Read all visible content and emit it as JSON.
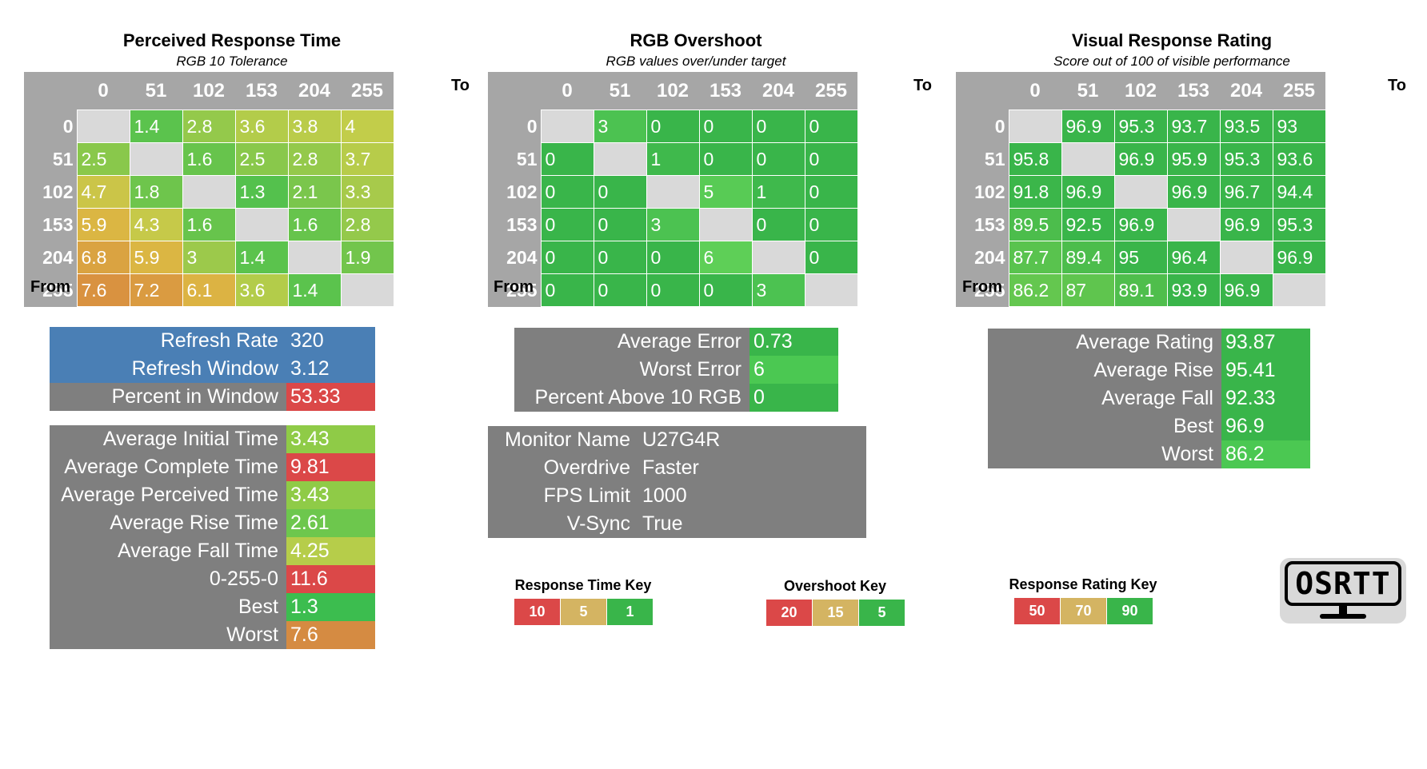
{
  "chart_data": [
    {
      "type": "heatmap",
      "title": "Perceived Response Time",
      "subtitle": "RGB 10 Tolerance",
      "xlabel": "To",
      "ylabel": "From",
      "x": [
        "0",
        "51",
        "102",
        "153",
        "204",
        "255"
      ],
      "y": [
        "0",
        "51",
        "102",
        "153",
        "204",
        "255"
      ],
      "scale": "time",
      "values": [
        [
          null,
          1.4,
          2.8,
          3.6,
          3.8,
          4
        ],
        [
          2.5,
          null,
          1.6,
          2.5,
          2.8,
          3.7
        ],
        [
          4.7,
          1.8,
          null,
          1.3,
          2.1,
          3.3
        ],
        [
          5.9,
          4.3,
          1.6,
          null,
          1.6,
          2.8
        ],
        [
          6.8,
          5.9,
          3,
          1.4,
          null,
          1.9
        ],
        [
          7.6,
          7.2,
          6.1,
          3.6,
          1.4,
          null
        ]
      ]
    },
    {
      "type": "heatmap",
      "title": "RGB Overshoot",
      "subtitle": "RGB values over/under target",
      "xlabel": "To",
      "ylabel": "From",
      "x": [
        "0",
        "51",
        "102",
        "153",
        "204",
        "255"
      ],
      "y": [
        "0",
        "51",
        "102",
        "153",
        "204",
        "255"
      ],
      "scale": "overshoot",
      "values": [
        [
          null,
          3,
          0,
          0,
          0,
          0
        ],
        [
          0,
          null,
          1,
          0,
          0,
          0
        ],
        [
          0,
          0,
          null,
          5,
          1,
          0
        ],
        [
          0,
          0,
          3,
          null,
          0,
          0
        ],
        [
          0,
          0,
          0,
          6,
          null,
          0
        ],
        [
          0,
          0,
          0,
          0,
          3,
          null
        ]
      ]
    },
    {
      "type": "heatmap",
      "title": "Visual Response Rating",
      "subtitle": "Score out of 100 of visible performance",
      "xlabel": "To",
      "ylabel": "From",
      "x": [
        "0",
        "51",
        "102",
        "153",
        "204",
        "255"
      ],
      "y": [
        "0",
        "51",
        "102",
        "153",
        "204",
        "255"
      ],
      "scale": "rating",
      "values": [
        [
          null,
          96.9,
          95.3,
          93.7,
          93.5,
          93
        ],
        [
          95.8,
          null,
          96.9,
          95.9,
          95.3,
          93.6
        ],
        [
          91.8,
          96.9,
          null,
          96.9,
          96.7,
          94.4
        ],
        [
          89.5,
          92.5,
          96.9,
          null,
          96.9,
          95.3
        ],
        [
          87.7,
          89.4,
          95,
          96.4,
          null,
          96.9
        ],
        [
          86.2,
          87,
          89.1,
          93.9,
          96.9,
          null
        ]
      ]
    }
  ],
  "refresh_stats": [
    {
      "label": "Refresh Rate",
      "value": "320",
      "color": "#4a7fb5",
      "value_color": "#4a7fb5"
    },
    {
      "label": "Refresh Window",
      "value": "3.12",
      "color": "#4a7fb5",
      "value_color": "#4a7fb5"
    },
    {
      "label": "Percent in Window",
      "value": "53.33",
      "color": "#7f7f7f",
      "value_color": "#db4848"
    }
  ],
  "time_stats": [
    {
      "label": "Average Initial Time",
      "value": "3.43",
      "value_color": "#8fcb47"
    },
    {
      "label": "Average Complete Time",
      "value": "9.81",
      "value_color": "#db4848"
    },
    {
      "label": "Average Perceived Time",
      "value": "3.43",
      "value_color": "#8fcb47"
    },
    {
      "label": "Average Rise Time",
      "value": "2.61",
      "value_color": "#6dc74d"
    },
    {
      "label": "Average Fall Time",
      "value": "4.25",
      "value_color": "#b6cd4a"
    },
    {
      "label": "0-255-0",
      "value": "11.6",
      "value_color": "#db4848"
    },
    {
      "label": "Best",
      "value": "1.3",
      "value_color": "#3cbd4f"
    },
    {
      "label": "Worst",
      "value": "7.6",
      "value_color": "#d58b42"
    }
  ],
  "overshoot_stats": [
    {
      "label": "Average Error",
      "value": "0.73",
      "value_color": "#39b54a"
    },
    {
      "label": "Worst Error",
      "value": "6",
      "value_color": "#4bc852"
    },
    {
      "label": "Percent Above 10 RGB",
      "value": "0",
      "value_color": "#39b54a"
    }
  ],
  "monitor_info": [
    {
      "label": "Monitor Name",
      "value": "U27G4R"
    },
    {
      "label": "Overdrive",
      "value": "Faster"
    },
    {
      "label": "FPS Limit",
      "value": "1000"
    },
    {
      "label": "V-Sync",
      "value": "True"
    }
  ],
  "rating_stats": [
    {
      "label": "Average Rating",
      "value": "93.87",
      "value_color": "#39b54a"
    },
    {
      "label": "Average Rise",
      "value": "95.41",
      "value_color": "#39b54a"
    },
    {
      "label": "Average Fall",
      "value": "92.33",
      "value_color": "#39b54a"
    },
    {
      "label": "Best",
      "value": "96.9",
      "value_color": "#39b54a"
    },
    {
      "label": "Worst",
      "value": "86.2",
      "value_color": "#4bc852"
    }
  ],
  "keys": [
    {
      "title": "Response Time Key",
      "items": [
        {
          "label": "10",
          "color": "#db4848"
        },
        {
          "label": "5",
          "color": "#d4b462"
        },
        {
          "label": "1",
          "color": "#39b54a"
        }
      ]
    },
    {
      "title": "Overshoot Key",
      "items": [
        {
          "label": "20",
          "color": "#db4848"
        },
        {
          "label": "15",
          "color": "#d4b462"
        },
        {
          "label": "5",
          "color": "#39b54a"
        }
      ]
    },
    {
      "title": "Response Rating Key",
      "items": [
        {
          "label": "50",
          "color": "#db4848"
        },
        {
          "label": "70",
          "color": "#d4b462"
        },
        {
          "label": "90",
          "color": "#39b54a"
        }
      ]
    }
  ],
  "logo": {
    "text": "OSRTT"
  },
  "colors": {
    "grey": "#7f7f7f",
    "header_grey": "#a6a6a6",
    "empty_cell": "#d9d9d9",
    "green": "#39b54a",
    "red": "#db4848",
    "amber": "#d4b462"
  }
}
